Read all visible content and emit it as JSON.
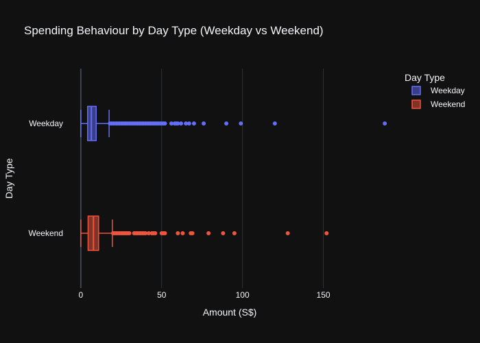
{
  "chart_data": {
    "type": "box",
    "orientation": "horizontal",
    "title": "Spending Behaviour by Day Type (Weekday vs Weekend)",
    "xlabel": "Amount (S$)",
    "ylabel": "Day Type",
    "xlim": [
      -8,
      196
    ],
    "xticks": [
      0,
      50,
      100,
      150
    ],
    "grid": true,
    "legend": {
      "title": "Day Type",
      "placement": "top-right"
    },
    "categories": [
      "Weekday",
      "Weekend"
    ],
    "series": [
      {
        "name": "Weekday",
        "color": "#636efa",
        "stats": {
          "min": 0,
          "q1": 4.2,
          "median": 6.5,
          "q3": 9.5,
          "upper_fence": 17.5
        },
        "outliers": [
          18,
          19,
          20,
          21,
          22,
          23,
          24,
          25,
          26,
          27,
          28,
          29,
          30,
          31,
          32,
          33,
          34,
          35,
          36,
          37,
          38,
          39,
          40,
          41,
          42,
          43,
          44,
          45,
          46,
          47,
          48,
          49,
          50,
          51,
          52,
          56,
          58,
          59,
          60,
          62,
          65,
          67,
          70,
          76,
          90,
          99,
          120,
          188
        ]
      },
      {
        "name": "Weekend",
        "color": "#ef553b",
        "stats": {
          "min": 0,
          "q1": 4.5,
          "median": 7.8,
          "q3": 11,
          "upper_fence": 19.5
        },
        "outliers": [
          20,
          21,
          22,
          23,
          24,
          25,
          26,
          27,
          28,
          29,
          30,
          33,
          34,
          35,
          36,
          37,
          38,
          39,
          40,
          42,
          44,
          45,
          46,
          50,
          51,
          52,
          60,
          63,
          68,
          69,
          79,
          88,
          95,
          128,
          152
        ]
      }
    ]
  }
}
